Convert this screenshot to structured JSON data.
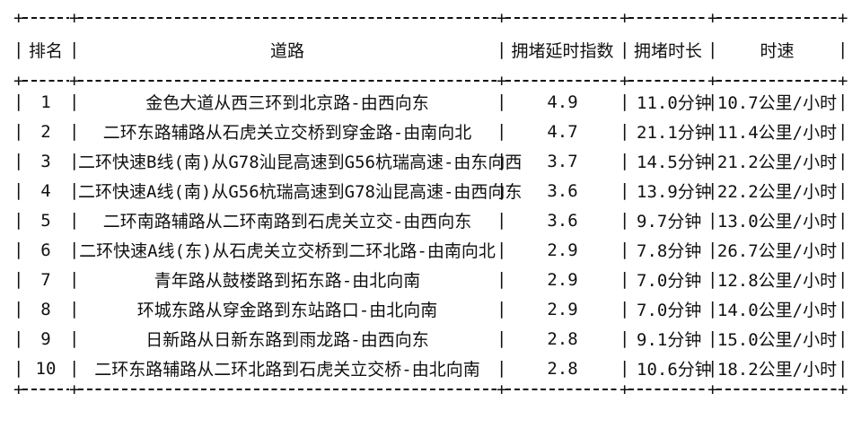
{
  "glyphs": {
    "vertical": "|",
    "junction": "+"
  },
  "colors": {
    "text": "#111111",
    "background": "#ffffff"
  },
  "table": {
    "headers": {
      "rank": "排名",
      "road": "道路",
      "delay_index": "拥堵延时指数",
      "duration": "拥堵时长",
      "speed": "时速"
    },
    "rows": [
      {
        "rank": "1",
        "road": "金色大道从西三环到北京路-由西向东",
        "delay_index": "4.9",
        "duration": "11.0分钟",
        "speed": "10.7公里/小时"
      },
      {
        "rank": "2",
        "road": "二环东路辅路从石虎关立交桥到穿金路-由南向北",
        "delay_index": "4.7",
        "duration": "21.1分钟",
        "speed": "11.4公里/小时"
      },
      {
        "rank": "3",
        "road": "二环快速B线(南)从G78汕昆高速到G56杭瑞高速-由东向西",
        "delay_index": "3.7",
        "duration": "14.5分钟",
        "speed": "21.2公里/小时"
      },
      {
        "rank": "4",
        "road": "二环快速A线(南)从G56杭瑞高速到G78汕昆高速-由西向东",
        "delay_index": "3.6",
        "duration": "13.9分钟",
        "speed": "22.2公里/小时"
      },
      {
        "rank": "5",
        "road": "二环南路辅路从二环南路到石虎关立交-由西向东",
        "delay_index": "3.6",
        "duration": "9.7分钟",
        "speed": "13.0公里/小时"
      },
      {
        "rank": "6",
        "road": "二环快速A线(东)从石虎关立交桥到二环北路-由南向北",
        "delay_index": "2.9",
        "duration": "7.8分钟",
        "speed": "26.7公里/小时"
      },
      {
        "rank": "7",
        "road": "青年路从鼓楼路到拓东路-由北向南",
        "delay_index": "2.9",
        "duration": "7.0分钟",
        "speed": "12.8公里/小时"
      },
      {
        "rank": "8",
        "road": "环城东路从穿金路到东站路口-由北向南",
        "delay_index": "2.9",
        "duration": "7.0分钟",
        "speed": "14.0公里/小时"
      },
      {
        "rank": "9",
        "road": "日新路从日新东路到雨龙路-由西向东",
        "delay_index": "2.8",
        "duration": "9.1分钟",
        "speed": "15.0公里/小时"
      },
      {
        "rank": "10",
        "road": "二环东路辅路从二环北路到石虎关立交桥-由北向南",
        "delay_index": "2.8",
        "duration": "10.6分钟",
        "speed": "18.2公里/小时"
      }
    ]
  }
}
